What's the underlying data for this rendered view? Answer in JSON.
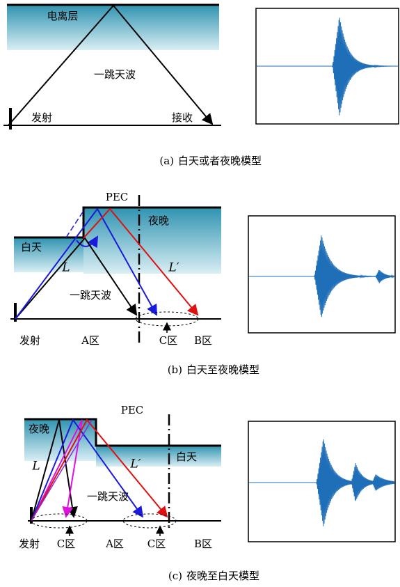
{
  "panels": [
    {
      "labels": {
        "layer": "电离层",
        "wave": "一跳天波",
        "tx": "发射",
        "rx": "接收"
      },
      "caption": {
        "tag": "(a)",
        "text": "白天或者夜晚模型"
      }
    },
    {
      "labels": {
        "pec": "PEC",
        "night": "夜晚",
        "day": "白天",
        "l1": "L",
        "l2": "L′",
        "wave": "一跳天波",
        "tx": "发射",
        "zone_a": "A区",
        "zone_c": "C区",
        "zone_b": "B区"
      },
      "caption": {
        "tag": "(b)",
        "text": "白天至夜晚模型"
      }
    },
    {
      "labels": {
        "pec": "PEC",
        "night": "夜晚",
        "day": "白天",
        "l1": "L",
        "l2": "L′",
        "wave": "一跳天波",
        "tx": "发射",
        "zone_c1": "C区",
        "zone_a": "A区",
        "zone_c2": "C区",
        "zone_b": "B区"
      },
      "caption": {
        "tag": "(c)",
        "text": "夜晚至白天模型"
      }
    }
  ]
}
